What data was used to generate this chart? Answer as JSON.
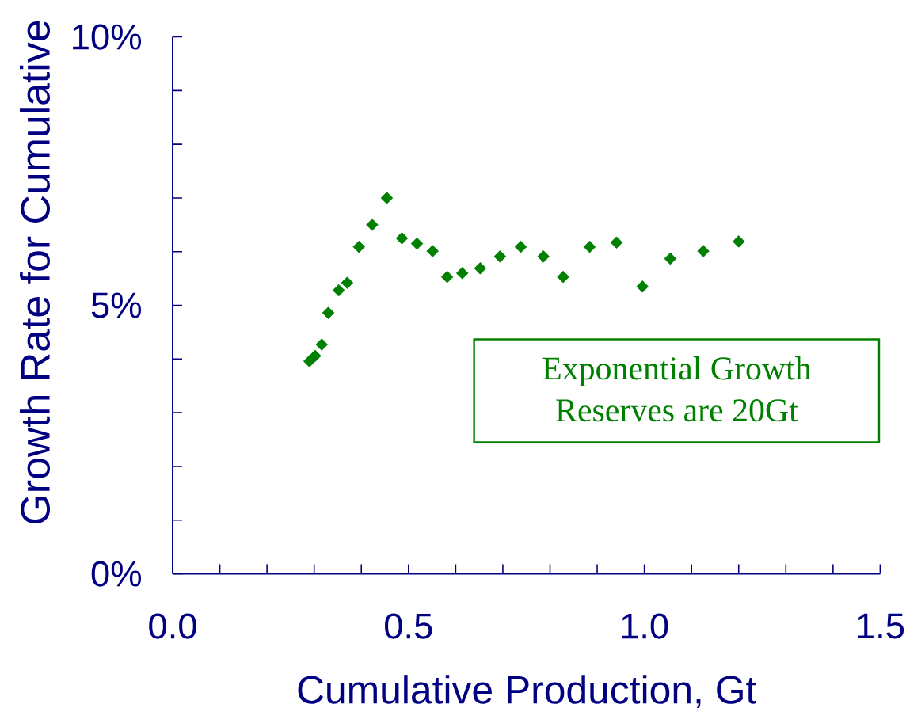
{
  "chart_data": {
    "type": "scatter",
    "xlabel": "Cumulative Production, Gt",
    "ylabel": "Growth Rate for Cumulative",
    "x": [
      0.29,
      0.302,
      0.316,
      0.33,
      0.352,
      0.37,
      0.395,
      0.423,
      0.454,
      0.486,
      0.518,
      0.551,
      0.582,
      0.614,
      0.652,
      0.694,
      0.738,
      0.786,
      0.828,
      0.884,
      0.941,
      0.996,
      1.055,
      1.125,
      1.2
    ],
    "values": [
      3.96,
      4.06,
      4.27,
      4.86,
      5.28,
      5.42,
      6.09,
      6.5,
      7.0,
      6.25,
      6.15,
      6.01,
      5.53,
      5.6,
      5.69,
      5.91,
      6.09,
      5.91,
      5.53,
      6.09,
      6.17,
      5.35,
      5.87,
      6.01,
      6.19
    ],
    "color": "#008000",
    "marker": "diamond",
    "xlim": [
      0,
      1.5
    ],
    "ylim": [
      0,
      10
    ],
    "xticks": [
      {
        "value": 0,
        "label": "0.0"
      },
      {
        "value": 0.1,
        "label": null
      },
      {
        "value": 0.2,
        "label": null
      },
      {
        "value": 0.3,
        "label": null
      },
      {
        "value": 0.4,
        "label": null
      },
      {
        "value": 0.5,
        "label": "0.5"
      },
      {
        "value": 0.6,
        "label": null
      },
      {
        "value": 0.7,
        "label": null
      },
      {
        "value": 0.8,
        "label": null
      },
      {
        "value": 0.9,
        "label": null
      },
      {
        "value": 1,
        "label": "1.0"
      },
      {
        "value": 1.1,
        "label": null
      },
      {
        "value": 1.2,
        "label": null
      },
      {
        "value": 1.3,
        "label": null
      },
      {
        "value": 1.4,
        "label": null
      },
      {
        "value": 1.5,
        "label": "1.5"
      }
    ],
    "yticks": [
      {
        "value": 0,
        "label": "0%"
      },
      {
        "value": 1,
        "label": null
      },
      {
        "value": 2,
        "label": null
      },
      {
        "value": 3,
        "label": null
      },
      {
        "value": 4,
        "label": null
      },
      {
        "value": 5,
        "label": "5%"
      },
      {
        "value": 6,
        "label": null
      },
      {
        "value": 7,
        "label": null
      },
      {
        "value": 8,
        "label": null
      },
      {
        "value": 9,
        "label": null
      },
      {
        "value": 10,
        "label": "10%"
      }
    ],
    "annotations": [
      "Exponential Growth",
      "Reserves are 20Gt"
    ]
  }
}
